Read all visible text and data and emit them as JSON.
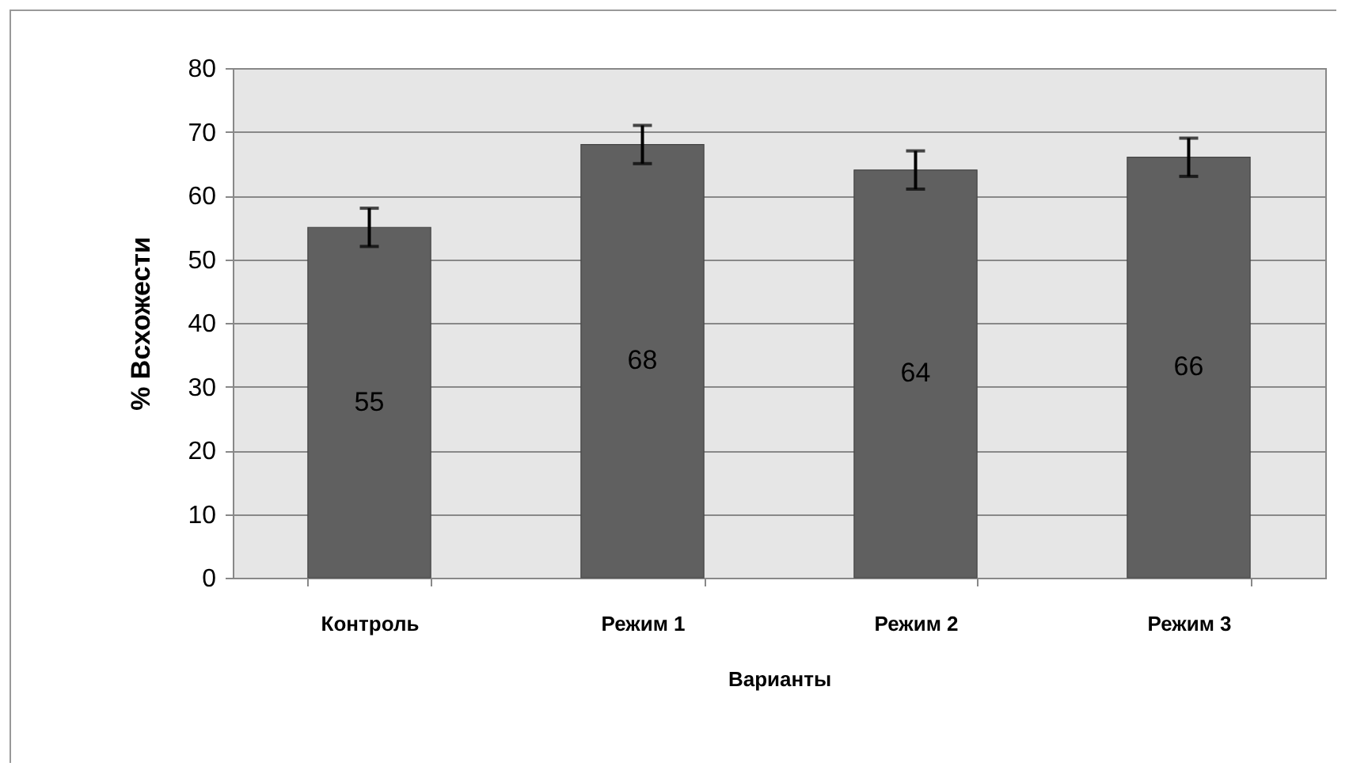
{
  "chart_data": {
    "type": "bar",
    "xlabel": "Варианты",
    "ylabel": "% Всхожести",
    "categories": [
      "Контроль",
      "Режим 1",
      "Режим 2",
      "Режим 3"
    ],
    "values": [
      55,
      68,
      64,
      66
    ],
    "errors": [
      3,
      3,
      3,
      3
    ],
    "color": "#606060",
    "ylim": [
      0,
      80
    ],
    "yticks": [
      0,
      10,
      20,
      30,
      40,
      50,
      60,
      70,
      80
    ],
    "grid": "y",
    "data_labels": true
  }
}
